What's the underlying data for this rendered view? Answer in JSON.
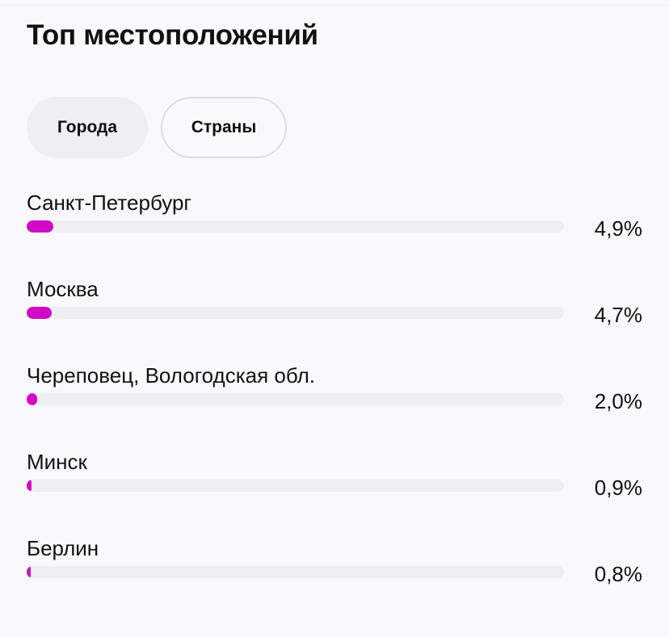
{
  "chart_data": {
    "type": "bar",
    "title": "Топ местоположений",
    "categories": [
      "Санкт-Петербург",
      "Москва",
      "Череповец, Вологодская обл.",
      "Минск",
      "Берлин"
    ],
    "values": [
      4.9,
      4.7,
      2.0,
      0.9,
      0.8
    ],
    "value_labels": [
      "4,9%",
      "4,7%",
      "2,0%",
      "0,9%",
      "0,8%"
    ],
    "color": "#d20ac8",
    "xlim": [
      0,
      100
    ]
  },
  "tabs": [
    "Города",
    "Страны"
  ]
}
